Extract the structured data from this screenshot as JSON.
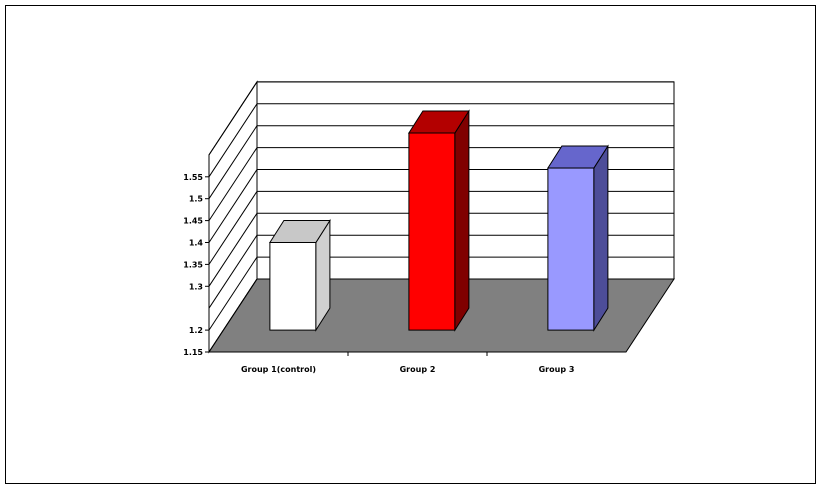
{
  "chart_data": {
    "type": "bar",
    "categories": [
      "Group 1(control)",
      "Group 2",
      "Group 3"
    ],
    "values": [
      1.35,
      1.6,
      1.52
    ],
    "ylim": [
      1.15,
      1.6
    ],
    "yticks": [
      1.15,
      1.2,
      1.3,
      1.35,
      1.4,
      1.45,
      1.5,
      1.55
    ],
    "ytick_labels": [
      "1.15",
      "1.2",
      "1.3",
      "1.35",
      "1.4",
      "1.45",
      "1.5",
      "1.55"
    ],
    "grid": true,
    "three_d": true,
    "floor_color": "#808080",
    "bar_colors": [
      "#ffffff",
      "#ff0000",
      "#9999ff"
    ],
    "bar_side_colors": [
      "#d0d0d0",
      "#800000",
      "#4d4d99"
    ],
    "bar_top_colors": [
      "#c8c8c8",
      "#b30000",
      "#6666cc"
    ]
  }
}
